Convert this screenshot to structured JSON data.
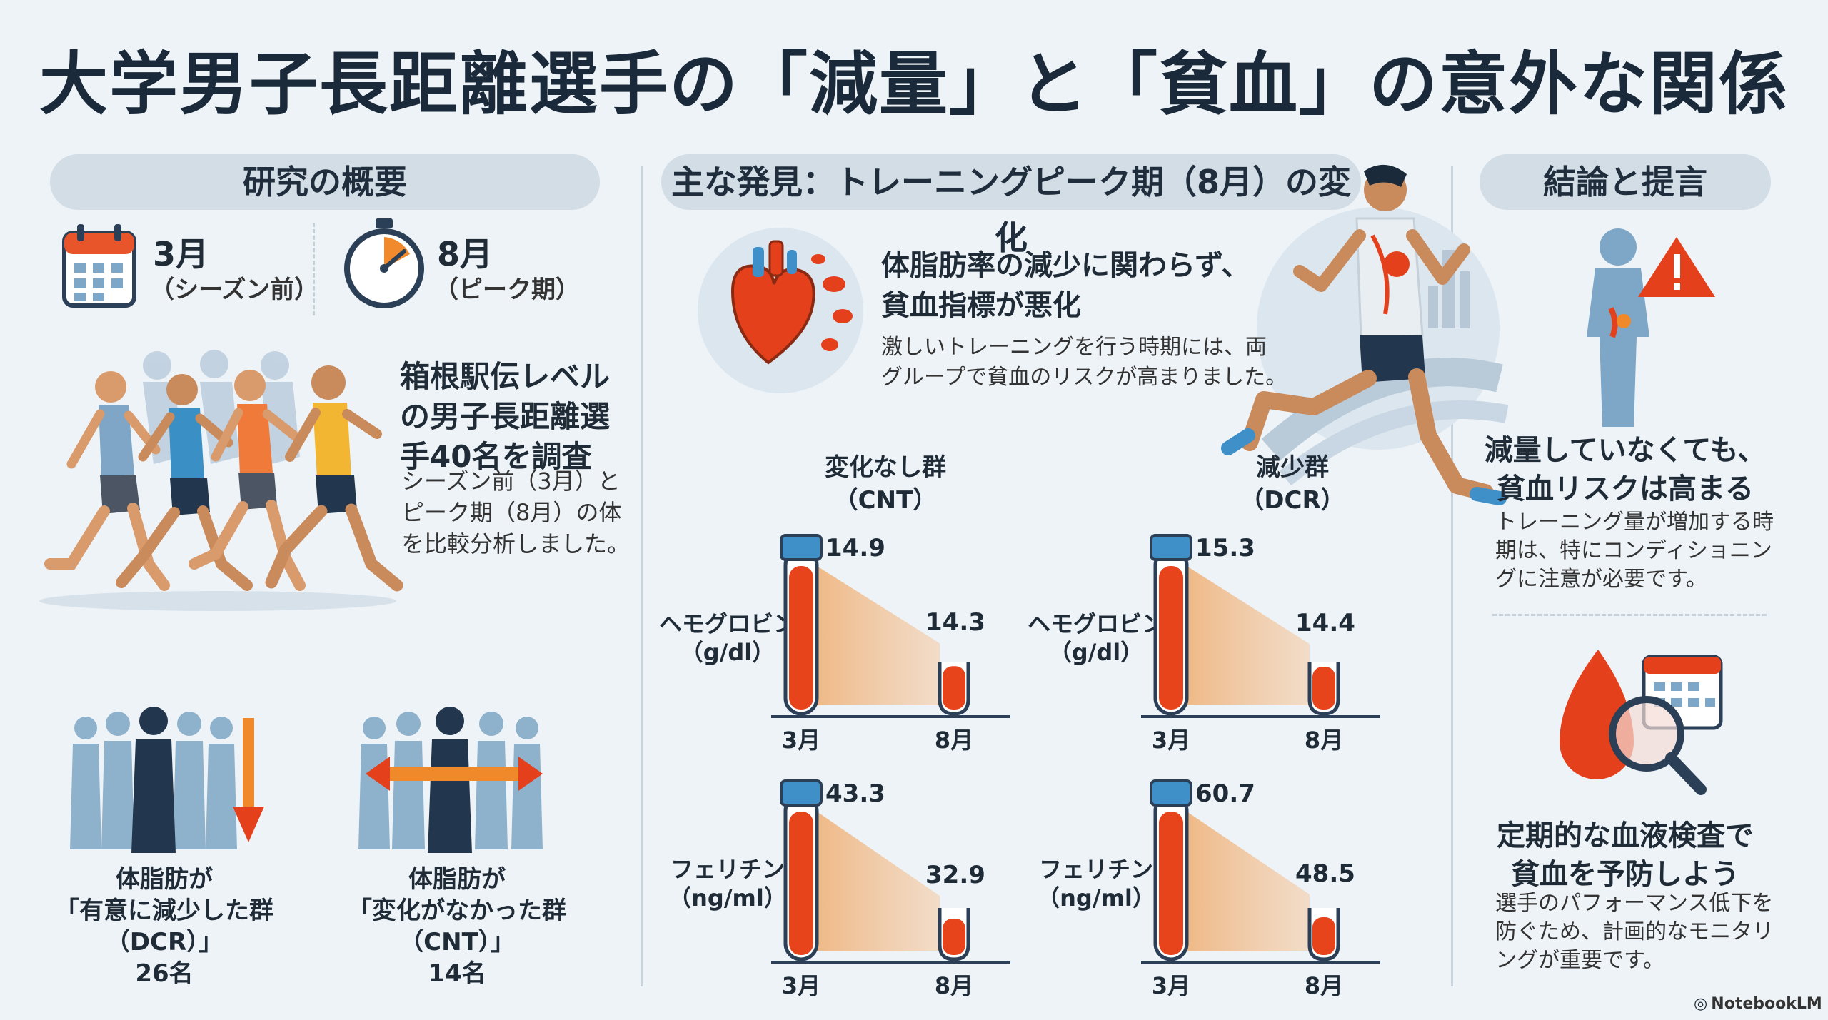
{
  "title": "大学男子長距離選手の「減量」と「貧血」の意外な関係",
  "left": {
    "header": "研究の概要",
    "march": {
      "month": "3月",
      "note": "（シーズン前）"
    },
    "august": {
      "month": "8月",
      "note": "（ピーク期）"
    },
    "study_lines": [
      "箱根駅伝レベル",
      "の男子長距離選",
      "手40名を調査"
    ],
    "desc_lines": [
      "シーズン前（3月）と",
      "ピーク期（8月）の体",
      "を比較分析しました。"
    ],
    "dcr_group": {
      "lines": [
        "体脂肪が",
        "「有意に減少した群",
        "（DCR）」",
        "26名"
      ]
    },
    "cnt_group": {
      "lines": [
        "体脂肪が",
        "「変化がなかった群",
        "（CNT）」",
        "14名"
      ]
    }
  },
  "middle": {
    "header": "主な発見：トレーニングピーク期（8月）の変化",
    "finding_lines": [
      "体脂肪率の減少に関わらず、",
      "貧血指標が悪化"
    ],
    "finding_desc": [
      "激しいトレーニングを行う時期には、両",
      "グループで貧血のリスクが高まりました。"
    ],
    "cnt_label": [
      "変化なし群",
      "（CNT）"
    ],
    "dcr_label": [
      "減少群",
      "（DCR）"
    ],
    "x_months": [
      "3月",
      "8月"
    ],
    "hb_label": [
      "ヘモグロビン",
      "（g/dl）"
    ],
    "fer_label": [
      "フェリチン",
      "（ng/ml）"
    ]
  },
  "right": {
    "header": "結論と提言",
    "c1_title": [
      "減量していなくても、",
      "貧血リスクは高まる"
    ],
    "c1_desc": [
      "トレーニング量が増加する時",
      "期は、特にコンディショニン",
      "グに注意が必要です。"
    ],
    "c2_title": [
      "定期的な血液検査で",
      "貧血を予防しよう"
    ],
    "c2_desc": [
      "選手のパフォーマンス低下を",
      "防ぐため、計画的なモニタリ",
      "ングが重要です。"
    ]
  },
  "footer": {
    "logo": "NotebookLM"
  },
  "colors": {
    "blood": "#e8441c",
    "cap": "#3f8fc9",
    "pill": "#d3dde6",
    "navy": "#223a57"
  },
  "chart_data": [
    {
      "type": "bar",
      "group": "CNT",
      "metric": "ヘモグロビン",
      "unit": "g/dl",
      "categories": [
        "3月",
        "8月"
      ],
      "values": [
        14.9,
        14.3
      ]
    },
    {
      "type": "bar",
      "group": "DCR",
      "metric": "ヘモグロビン",
      "unit": "g/dl",
      "categories": [
        "3月",
        "8月"
      ],
      "values": [
        15.3,
        14.4
      ]
    },
    {
      "type": "bar",
      "group": "CNT",
      "metric": "フェリチン",
      "unit": "ng/ml",
      "categories": [
        "3月",
        "8月"
      ],
      "values": [
        43.3,
        32.9
      ]
    },
    {
      "type": "bar",
      "group": "DCR",
      "metric": "フェリチン",
      "unit": "ng/ml",
      "categories": [
        "3月",
        "8月"
      ],
      "values": [
        60.7,
        48.5
      ]
    }
  ]
}
